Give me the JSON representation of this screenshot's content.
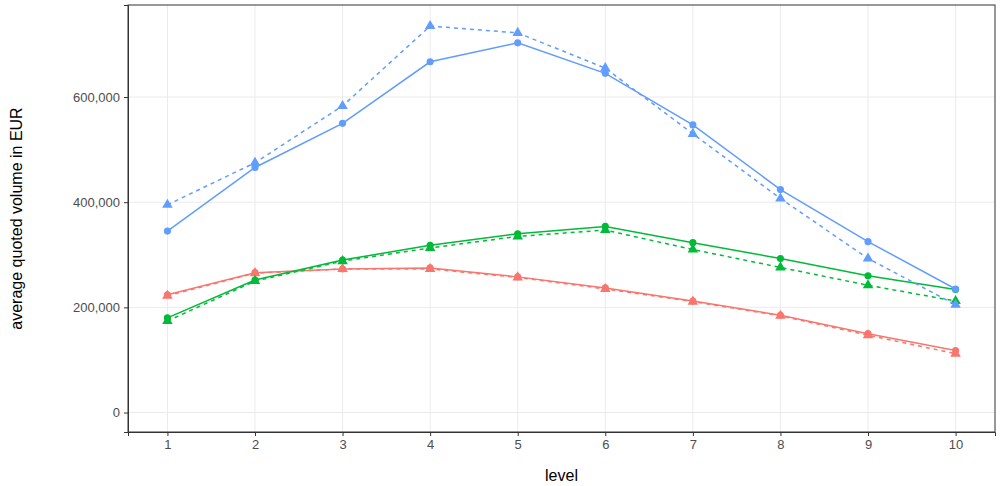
{
  "chart_data": {
    "type": "line",
    "x_label": "level",
    "y_label": "average quoted volume in EUR",
    "x": [
      1,
      2,
      3,
      4,
      5,
      6,
      7,
      8,
      9,
      10
    ],
    "xlim": [
      0.55,
      10.45
    ],
    "xticks": [
      1,
      2,
      3,
      4,
      5,
      6,
      7,
      8,
      9,
      10
    ],
    "ylim": [
      -37000,
      775000
    ],
    "yticks": [
      0,
      {
        "value": 200000,
        "label": "200,000"
      },
      {
        "value": 400000,
        "label": "400,000"
      },
      {
        "value": 600000,
        "label": "600,000"
      }
    ],
    "grid": true,
    "series": [
      {
        "color": "#F8766D",
        "marker": "circle",
        "line_style": "solid",
        "values": [
          224000,
          266000,
          273000,
          275000,
          258000,
          237000,
          212000,
          185000,
          150000,
          118000
        ]
      },
      {
        "color": "#F8766D",
        "marker": "triangle",
        "line_style": "dashed",
        "values": [
          222000,
          265000,
          273000,
          273000,
          257000,
          235000,
          211000,
          184000,
          147000,
          112000
        ]
      },
      {
        "color": "#00BA38",
        "marker": "circle",
        "line_style": "solid",
        "values": [
          180000,
          252000,
          290000,
          318000,
          340000,
          354000,
          323000,
          293000,
          260000,
          234000
        ]
      },
      {
        "color": "#00BA38",
        "marker": "triangle",
        "line_style": "dashed",
        "values": [
          174000,
          250000,
          288000,
          313000,
          335000,
          347000,
          310000,
          276000,
          242000,
          212000
        ]
      },
      {
        "color": "#619CFF",
        "marker": "circle",
        "line_style": "solid",
        "values": [
          345000,
          466000,
          550000,
          667000,
          703000,
          645000,
          547000,
          424000,
          325000,
          235000
        ]
      },
      {
        "color": "#619CFF",
        "marker": "triangle",
        "line_style": "dashed",
        "values": [
          395000,
          475000,
          583000,
          735000,
          722000,
          655000,
          530000,
          407000,
          293000,
          205000
        ]
      }
    ]
  }
}
